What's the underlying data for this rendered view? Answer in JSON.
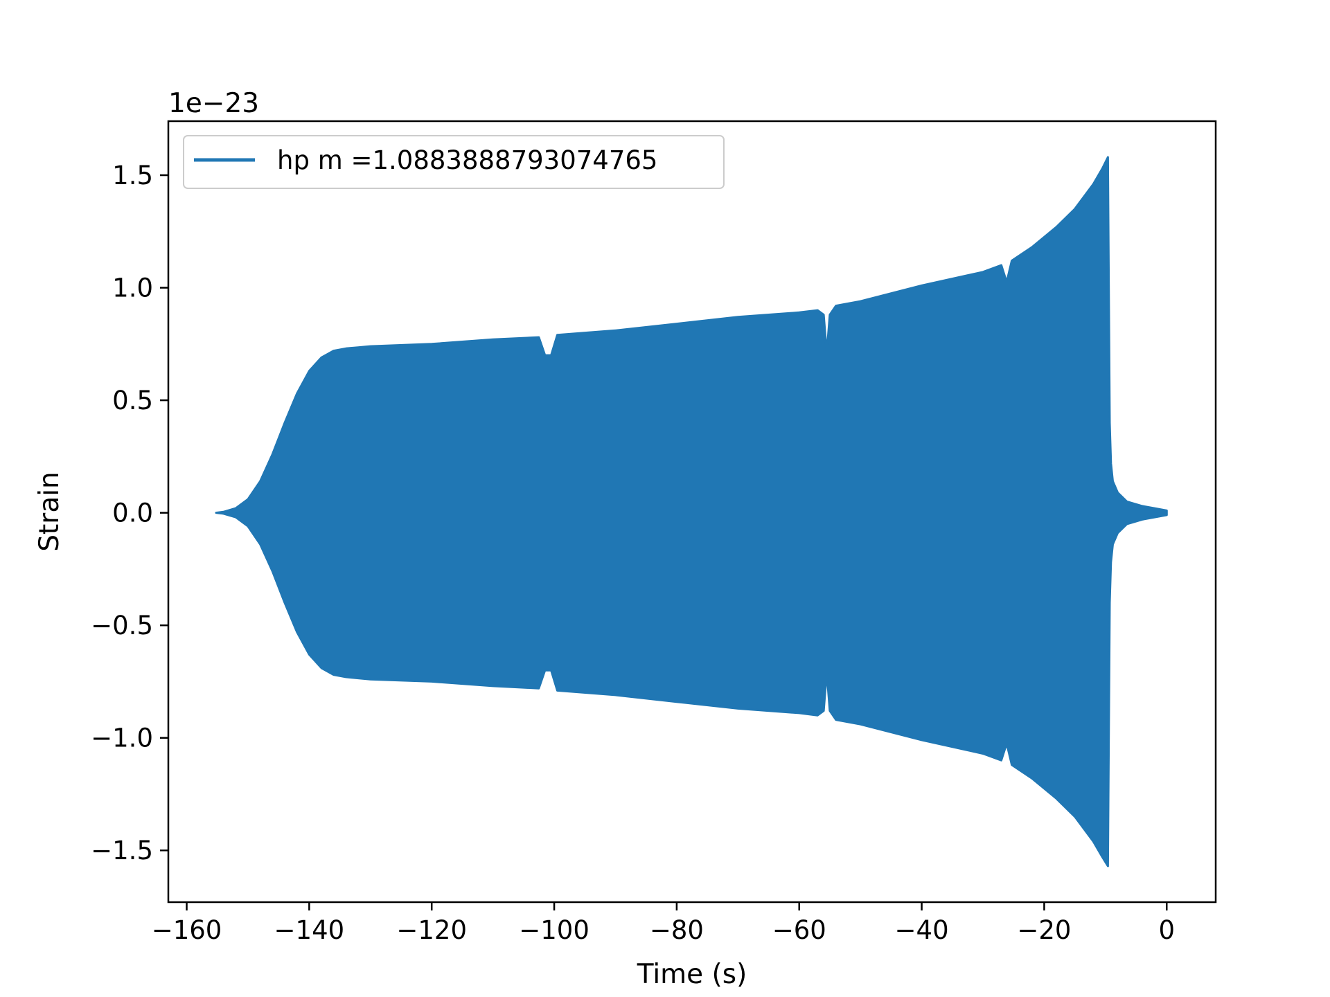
{
  "chart_data": {
    "type": "line",
    "xlabel": "Time (s)",
    "ylabel": "Strain",
    "offset_label": "1e−23",
    "xlim": [
      -163,
      8
    ],
    "ylim": [
      -1.73,
      1.74
    ],
    "xticks": [
      -160,
      -140,
      -120,
      -100,
      -80,
      -60,
      -40,
      -20,
      0
    ],
    "xtick_labels": [
      "−160",
      "−140",
      "−120",
      "−100",
      "−80",
      "−60",
      "−40",
      "−20",
      "0"
    ],
    "yticks": [
      1.5,
      1.0,
      0.5,
      0.0,
      -0.5,
      -1.0,
      -1.5
    ],
    "ytick_labels": [
      "1.5",
      "1.0",
      "0.5",
      "0.0",
      "−0.5",
      "−1.0",
      "−1.5"
    ],
    "grid": false,
    "legend_position": "top-left",
    "series": [
      {
        "name": "hp m =1.0883888793074765",
        "color": "#2077b4",
        "envelope": {
          "t": [
            -155.2,
            -154,
            -152,
            -150,
            -148,
            -146,
            -144,
            -142,
            -140,
            -138,
            -136,
            -134,
            -132,
            -130,
            -120,
            -110,
            -102.5,
            -101.5,
            -100.5,
            -99.5,
            -90,
            -80,
            -70,
            -60,
            -57,
            -56,
            -55.5,
            -55,
            -54,
            -50,
            -40,
            -30,
            -27,
            -26.3,
            -26,
            -25.3,
            -22,
            -18,
            -15,
            -12,
            -10.5,
            -9.6,
            -9.3,
            -9.1,
            -8.8,
            -8.0,
            -6.5,
            -4.0,
            -2.0,
            0.0
          ],
          "upper": [
            0.0,
            0.004,
            0.02,
            0.06,
            0.14,
            0.26,
            0.4,
            0.53,
            0.63,
            0.69,
            0.72,
            0.73,
            0.735,
            0.74,
            0.75,
            0.77,
            0.78,
            0.7,
            0.7,
            0.79,
            0.81,
            0.84,
            0.87,
            0.89,
            0.9,
            0.88,
            0.71,
            0.88,
            0.92,
            0.94,
            1.01,
            1.07,
            1.1,
            1.04,
            1.04,
            1.12,
            1.18,
            1.27,
            1.35,
            1.46,
            1.53,
            1.58,
            0.4,
            0.22,
            0.14,
            0.09,
            0.05,
            0.03,
            0.02,
            0.01
          ],
          "lower": [
            0.0,
            -0.004,
            -0.02,
            -0.06,
            -0.14,
            -0.26,
            -0.4,
            -0.53,
            -0.63,
            -0.69,
            -0.72,
            -0.73,
            -0.735,
            -0.74,
            -0.75,
            -0.77,
            -0.78,
            -0.7,
            -0.7,
            -0.79,
            -0.81,
            -0.84,
            -0.87,
            -0.89,
            -0.9,
            -0.88,
            -0.71,
            -0.88,
            -0.92,
            -0.94,
            -1.01,
            -1.07,
            -1.1,
            -1.04,
            -1.04,
            -1.12,
            -1.18,
            -1.27,
            -1.35,
            -1.46,
            -1.53,
            -1.57,
            -0.4,
            -0.22,
            -0.14,
            -0.09,
            -0.05,
            -0.03,
            -0.02,
            -0.01
          ]
        }
      }
    ]
  }
}
